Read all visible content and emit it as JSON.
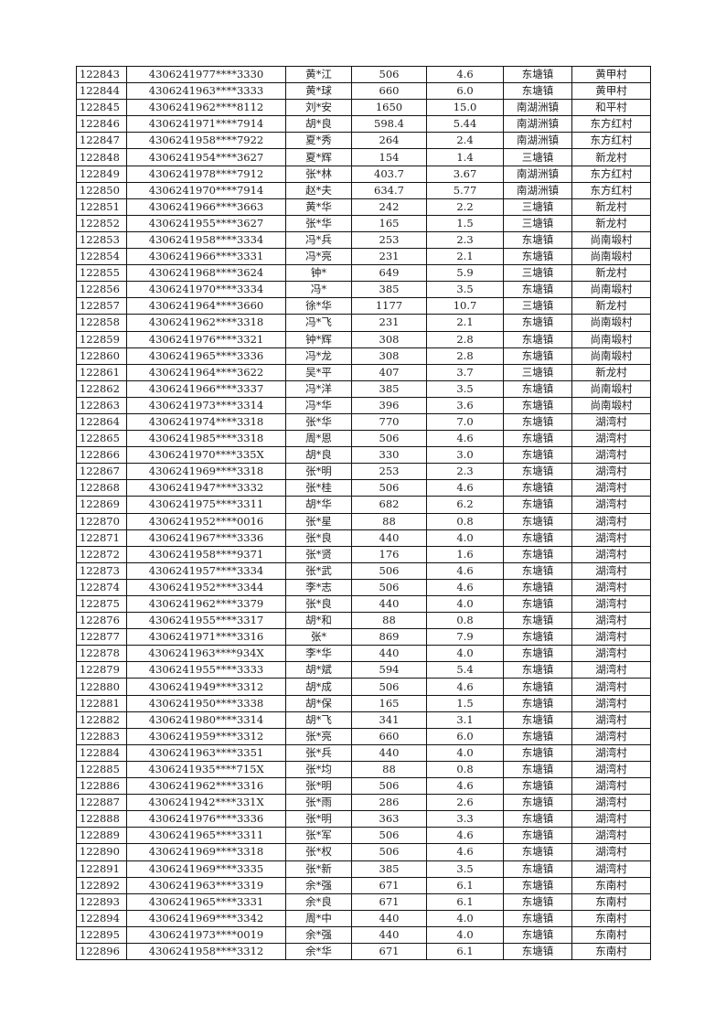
{
  "rows": [
    [
      "122843",
      "4306241977****3330",
      "黄*江",
      "506",
      "4.6",
      "东塘镇",
      "黄甲村"
    ],
    [
      "122844",
      "4306241963****3333",
      "黄*球",
      "660",
      "6.0",
      "东塘镇",
      "黄甲村"
    ],
    [
      "122845",
      "4306241962****8112",
      "刘*安",
      "1650",
      "15.0",
      "南湖洲镇",
      "和平村"
    ],
    [
      "122846",
      "4306241971****7914",
      "胡*良",
      "598.4",
      "5.44",
      "南湖洲镇",
      "东方红村"
    ],
    [
      "122847",
      "4306241958****7922",
      "夏*秀",
      "264",
      "2.4",
      "南湖洲镇",
      "东方红村"
    ],
    [
      "122848",
      "4306241954****3627",
      "夏*辉",
      "154",
      "1.4",
      "三塘镇",
      "新龙村"
    ],
    [
      "122849",
      "4306241978****7912",
      "张*林",
      "403.7",
      "3.67",
      "南湖洲镇",
      "东方红村"
    ],
    [
      "122850",
      "4306241970****7914",
      "赵*夫",
      "634.7",
      "5.77",
      "南湖洲镇",
      "东方红村"
    ],
    [
      "122851",
      "4306241966****3663",
      "黄*华",
      "242",
      "2.2",
      "三塘镇",
      "新龙村"
    ],
    [
      "122852",
      "4306241955****3627",
      "张*华",
      "165",
      "1.5",
      "三塘镇",
      "新龙村"
    ],
    [
      "122853",
      "4306241958****3334",
      "冯*兵",
      "253",
      "2.3",
      "东塘镇",
      "尚南塅村"
    ],
    [
      "122854",
      "4306241966****3331",
      "冯*亮",
      "231",
      "2.1",
      "东塘镇",
      "尚南塅村"
    ],
    [
      "122855",
      "4306241968****3624",
      "钟*",
      "649",
      "5.9",
      "三塘镇",
      "新龙村"
    ],
    [
      "122856",
      "4306241970****3334",
      "冯*",
      "385",
      "3.5",
      "东塘镇",
      "尚南塅村"
    ],
    [
      "122857",
      "4306241964****3660",
      "徐*华",
      "1177",
      "10.7",
      "三塘镇",
      "新龙村"
    ],
    [
      "122858",
      "4306241962****3318",
      "冯*飞",
      "231",
      "2.1",
      "东塘镇",
      "尚南塅村"
    ],
    [
      "122859",
      "4306241976****3321",
      "钟*辉",
      "308",
      "2.8",
      "东塘镇",
      "尚南塅村"
    ],
    [
      "122860",
      "4306241965****3336",
      "冯*龙",
      "308",
      "2.8",
      "东塘镇",
      "尚南塅村"
    ],
    [
      "122861",
      "4306241964****3622",
      "吴*平",
      "407",
      "3.7",
      "三塘镇",
      "新龙村"
    ],
    [
      "122862",
      "4306241966****3337",
      "冯*洋",
      "385",
      "3.5",
      "东塘镇",
      "尚南塅村"
    ],
    [
      "122863",
      "4306241973****3314",
      "冯*华",
      "396",
      "3.6",
      "东塘镇",
      "尚南塅村"
    ],
    [
      "122864",
      "4306241974****3318",
      "张*华",
      "770",
      "7.0",
      "东塘镇",
      "湖湾村"
    ],
    [
      "122865",
      "4306241985****3318",
      "周*恩",
      "506",
      "4.6",
      "东塘镇",
      "湖湾村"
    ],
    [
      "122866",
      "4306241970****335X",
      "胡*良",
      "330",
      "3.0",
      "东塘镇",
      "湖湾村"
    ],
    [
      "122867",
      "4306241969****3318",
      "张*明",
      "253",
      "2.3",
      "东塘镇",
      "湖湾村"
    ],
    [
      "122868",
      "4306241947****3332",
      "张*桂",
      "506",
      "4.6",
      "东塘镇",
      "湖湾村"
    ],
    [
      "122869",
      "4306241975****3311",
      "胡*华",
      "682",
      "6.2",
      "东塘镇",
      "湖湾村"
    ],
    [
      "122870",
      "4306241952****0016",
      "张*星",
      "88",
      "0.8",
      "东塘镇",
      "湖湾村"
    ],
    [
      "122871",
      "4306241967****3336",
      "张*良",
      "440",
      "4.0",
      "东塘镇",
      "湖湾村"
    ],
    [
      "122872",
      "4306241958****9371",
      "张*贤",
      "176",
      "1.6",
      "东塘镇",
      "湖湾村"
    ],
    [
      "122873",
      "4306241957****3334",
      "张*武",
      "506",
      "4.6",
      "东塘镇",
      "湖湾村"
    ],
    [
      "122874",
      "4306241952****3344",
      "李*志",
      "506",
      "4.6",
      "东塘镇",
      "湖湾村"
    ],
    [
      "122875",
      "4306241962****3379",
      "张*良",
      "440",
      "4.0",
      "东塘镇",
      "湖湾村"
    ],
    [
      "122876",
      "4306241955****3317",
      "胡*和",
      "88",
      "0.8",
      "东塘镇",
      "湖湾村"
    ],
    [
      "122877",
      "4306241971****3316",
      "张*",
      "869",
      "7.9",
      "东塘镇",
      "湖湾村"
    ],
    [
      "122878",
      "4306241963****934X",
      "李*华",
      "440",
      "4.0",
      "东塘镇",
      "湖湾村"
    ],
    [
      "122879",
      "4306241955****3333",
      "胡*斌",
      "594",
      "5.4",
      "东塘镇",
      "湖湾村"
    ],
    [
      "122880",
      "4306241949****3312",
      "胡*成",
      "506",
      "4.6",
      "东塘镇",
      "湖湾村"
    ],
    [
      "122881",
      "4306241950****3338",
      "胡*保",
      "165",
      "1.5",
      "东塘镇",
      "湖湾村"
    ],
    [
      "122882",
      "4306241980****3314",
      "胡*飞",
      "341",
      "3.1",
      "东塘镇",
      "湖湾村"
    ],
    [
      "122883",
      "4306241959****3312",
      "张*亮",
      "660",
      "6.0",
      "东塘镇",
      "湖湾村"
    ],
    [
      "122884",
      "4306241963****3351",
      "张*兵",
      "440",
      "4.0",
      "东塘镇",
      "湖湾村"
    ],
    [
      "122885",
      "4306241935****715X",
      "张*均",
      "88",
      "0.8",
      "东塘镇",
      "湖湾村"
    ],
    [
      "122886",
      "4306241962****3316",
      "张*明",
      "506",
      "4.6",
      "东塘镇",
      "湖湾村"
    ],
    [
      "122887",
      "4306241942****331X",
      "张*雨",
      "286",
      "2.6",
      "东塘镇",
      "湖湾村"
    ],
    [
      "122888",
      "4306241976****3336",
      "张*明",
      "363",
      "3.3",
      "东塘镇",
      "湖湾村"
    ],
    [
      "122889",
      "4306241965****3311",
      "张*军",
      "506",
      "4.6",
      "东塘镇",
      "湖湾村"
    ],
    [
      "122890",
      "4306241969****3318",
      "张*权",
      "506",
      "4.6",
      "东塘镇",
      "湖湾村"
    ],
    [
      "122891",
      "4306241969****3335",
      "张*新",
      "385",
      "3.5",
      "东塘镇",
      "湖湾村"
    ],
    [
      "122892",
      "4306241963****3319",
      "余*强",
      "671",
      "6.1",
      "东塘镇",
      "东南村"
    ],
    [
      "122893",
      "4306241965****3331",
      "余*良",
      "671",
      "6.1",
      "东塘镇",
      "东南村"
    ],
    [
      "122894",
      "4306241969****3342",
      "周*中",
      "440",
      "4.0",
      "东塘镇",
      "东南村"
    ],
    [
      "122895",
      "4306241973****0019",
      "余*强",
      "440",
      "4.0",
      "东塘镇",
      "东南村"
    ],
    [
      "122896",
      "4306241958****3312",
      "余*华",
      "671",
      "6.1",
      "东塘镇",
      "东南村"
    ]
  ]
}
